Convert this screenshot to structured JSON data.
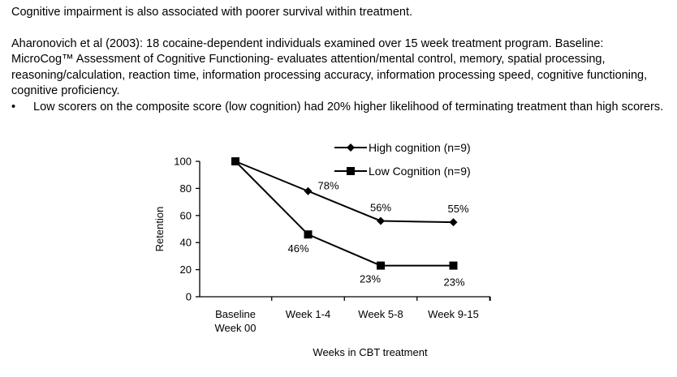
{
  "slide": {
    "line1": "Cognitive impairment is also associated with poorer survival within treatment.",
    "para": "Aharonovich et al (2003): 18 cocaine-dependent  individuals examined over 15 week treatment program. Baseline: MicroCog™ Assessment of Cognitive Functioning- evaluates attention/mental control, memory, spatial processing, reasoning/calculation,  reaction time, information processing accuracy, information processing speed, cognitive functioning, cognitive proficiency.",
    "bullet_symbol": "•",
    "bullet": "Low scorers on the composite score (low cognition) had 20% higher likelihood  of terminating treatment than high scorers."
  },
  "chart_data": {
    "type": "line",
    "categories": [
      "Baseline Week 00",
      "Week 1-4",
      "Week 5-8",
      "Week 9-15"
    ],
    "category_lines": [
      [
        "Baseline",
        "Week 00"
      ],
      [
        "Week 1-4"
      ],
      [
        "Week 5-8"
      ],
      [
        "Week 9-15"
      ]
    ],
    "series": [
      {
        "name": "High cognition (n=9)",
        "marker": "diamond",
        "values": [
          100,
          78,
          56,
          55
        ],
        "labels": [
          "",
          "78%",
          "56%",
          "55%"
        ]
      },
      {
        "name": "Low Cognition (n=9)",
        "marker": "square",
        "values": [
          100,
          46,
          23,
          23
        ],
        "labels": [
          "",
          "46%",
          "23%",
          "23%"
        ]
      }
    ],
    "xlabel": "Weeks in CBT treatment",
    "ylabel": "Retention",
    "ylim": [
      0,
      100
    ],
    "yticks": [
      0,
      20,
      40,
      60,
      80,
      100
    ],
    "grid": false,
    "legend": "top-right"
  }
}
